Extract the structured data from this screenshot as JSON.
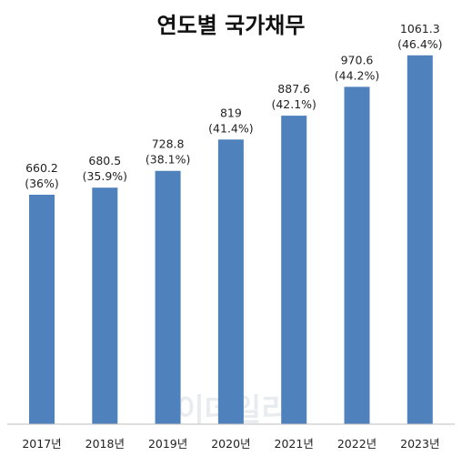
{
  "chart_data": {
    "type": "bar",
    "title": "연도별 국가채무",
    "categories": [
      "2017년",
      "2018년",
      "2019년",
      "2020년",
      "2021년",
      "2022년",
      "2023년"
    ],
    "values": [
      660.2,
      680.5,
      728.8,
      819,
      887.6,
      970.6,
      1061.3
    ],
    "value_labels": [
      "660.2",
      "680.5",
      "728.8",
      "819",
      "887.6",
      "970.6",
      "1061.3"
    ],
    "ratio_labels": [
      "(36%)",
      "(35.9%)",
      "(38.1%)",
      "(41.4%)",
      "(42.1%)",
      "(44.2%)",
      "(46.4%)"
    ],
    "ylim": [
      0,
      1100
    ],
    "grid": false,
    "legend": "none",
    "bar_color": "#4f81bd"
  },
  "watermark": "이데일리"
}
